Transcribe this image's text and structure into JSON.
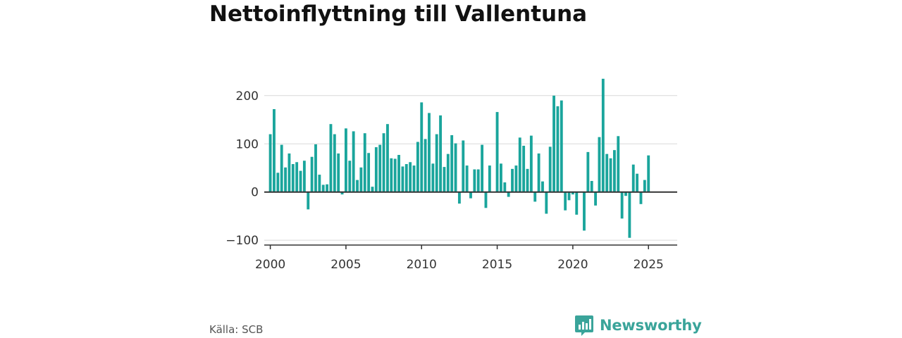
{
  "title": "Nettoinflyttning till Vallentuna",
  "source": "Källa: SCB",
  "brand": {
    "name": "Newsworthy",
    "icon": "bar-chart-speech-icon",
    "color": "#3aa49a"
  },
  "colors": {
    "bar": "#1aa59c",
    "grid": "#d9d9d9",
    "axis": "#333333"
  },
  "chart_data": {
    "type": "bar",
    "title": "Nettoinflyttning till Vallentuna",
    "xlabel": "",
    "ylabel": "",
    "x_ticks": [
      2000,
      2005,
      2010,
      2015,
      2020,
      2025
    ],
    "y_ticks": [
      -100,
      0,
      100,
      200
    ],
    "y_tick_labels": [
      "−100",
      "0",
      "100",
      "200"
    ],
    "xlim": [
      1999.6,
      2026.9
    ],
    "ylim": [
      -110,
      245
    ],
    "grid": true,
    "legend": "none",
    "x_start": 2000,
    "bars_per_year": 4,
    "values": [
      120,
      172,
      40,
      98,
      51,
      80,
      58,
      62,
      44,
      65,
      -36,
      73,
      99,
      36,
      15,
      16,
      141,
      120,
      80,
      -5,
      132,
      65,
      126,
      25,
      51,
      122,
      81,
      11,
      93,
      98,
      122,
      141,
      70,
      69,
      77,
      53,
      58,
      62,
      55,
      104,
      186,
      110,
      164,
      59,
      120,
      159,
      52,
      79,
      118,
      101,
      -24,
      107,
      55,
      -13,
      47,
      47,
      98,
      -33,
      55,
      0,
      166,
      59,
      20,
      -10,
      48,
      55,
      113,
      96,
      48,
      117,
      -20,
      80,
      22,
      -45,
      94,
      200,
      178,
      190,
      -38,
      -17,
      -5,
      -47,
      0,
      -80,
      83,
      23,
      -28,
      114,
      235,
      79,
      70,
      87,
      116,
      -55,
      -8,
      -95,
      57,
      38,
      -25,
      25,
      76
    ]
  }
}
